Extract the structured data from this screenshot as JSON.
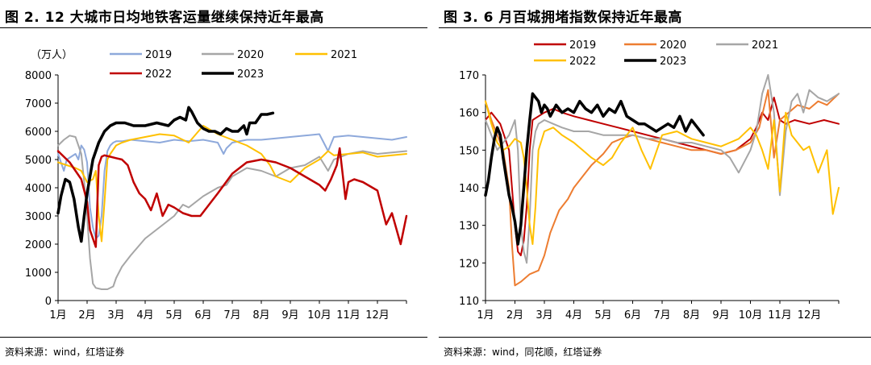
{
  "charts": [
    {
      "title": "图 2. 12 大城市日均地铁客运量继续保持近年最高",
      "source": "资料来源：wind，红塔证券"
    },
    {
      "title": "图 3. 6 月百城拥堵指数保持近年最高",
      "source": "资料来源：wind，同花顺，红塔证券"
    }
  ],
  "chart_data": [
    {
      "type": "line",
      "unit_label": "（万人）",
      "ylim": [
        0,
        8000
      ],
      "yticks": [
        0,
        1000,
        2000,
        3000,
        4000,
        5000,
        6000,
        7000,
        8000
      ],
      "xticks": [
        "1月",
        "2月",
        "3月",
        "4月",
        "5月",
        "6月",
        "7月",
        "8月",
        "9月",
        "10月",
        "11月",
        "12月"
      ],
      "xlim": [
        0,
        12
      ],
      "legend_position": "top",
      "grid": false,
      "series": [
        {
          "name": "2019",
          "color": "#8ea9db",
          "width": 2,
          "x": [
            0,
            0.1,
            0.2,
            0.3,
            0.45,
            0.6,
            0.7,
            0.8,
            0.9,
            1.0,
            1.1,
            1.2,
            1.3,
            1.4,
            1.5,
            1.6,
            1.7,
            1.8,
            1.9,
            2.0,
            2.2,
            2.5,
            3,
            3.5,
            4,
            4.5,
            5,
            5.5,
            5.7,
            5.8,
            6,
            6.5,
            7,
            7.5,
            8,
            8.5,
            9,
            9.3,
            9.5,
            10,
            10.5,
            11,
            11.5,
            12
          ],
          "y": [
            5200,
            4900,
            4600,
            5000,
            5100,
            5200,
            5000,
            5500,
            5350,
            4900,
            3300,
            2600,
            2200,
            2300,
            3000,
            4600,
            5300,
            5500,
            5600,
            5650,
            5650,
            5700,
            5650,
            5600,
            5700,
            5650,
            5700,
            5600,
            5200,
            5400,
            5600,
            5700,
            5700,
            5750,
            5800,
            5850,
            5900,
            5300,
            5800,
            5850,
            5800,
            5750,
            5700,
            5800
          ]
        },
        {
          "name": "2020",
          "color": "#a6a6a6",
          "width": 2,
          "x": [
            0,
            0.2,
            0.4,
            0.6,
            0.8,
            0.9,
            1.0,
            1.1,
            1.2,
            1.3,
            1.5,
            1.7,
            1.9,
            2.0,
            2.2,
            2.5,
            3,
            3.5,
            4,
            4.3,
            4.5,
            5,
            5.5,
            5.8,
            6,
            6.5,
            7,
            7.5,
            8,
            8.5,
            9,
            9.3,
            9.5,
            10,
            10.5,
            11,
            11.5,
            12
          ],
          "y": [
            5500,
            5700,
            5850,
            5800,
            5200,
            4200,
            3000,
            1500,
            600,
            450,
            400,
            400,
            500,
            800,
            1200,
            1600,
            2200,
            2600,
            3000,
            3400,
            3300,
            3700,
            4000,
            4100,
            4400,
            4700,
            4600,
            4400,
            4700,
            4800,
            5100,
            4600,
            5000,
            5200,
            5300,
            5200,
            5250,
            5300
          ]
        },
        {
          "name": "2021",
          "color": "#ffc000",
          "width": 2,
          "x": [
            0,
            0.3,
            0.6,
            0.8,
            1.0,
            1.2,
            1.3,
            1.4,
            1.5,
            1.6,
            1.7,
            1.8,
            2.0,
            2.2,
            2.5,
            3,
            3.5,
            4,
            4.3,
            4.5,
            5,
            5.5,
            6,
            6.5,
            7,
            7.3,
            7.5,
            8,
            8.5,
            9,
            9.3,
            9.5,
            10,
            10.5,
            11,
            11.5,
            12
          ],
          "y": [
            4900,
            4800,
            4700,
            4600,
            4200,
            4300,
            4600,
            3000,
            2100,
            3500,
            5000,
            5200,
            5500,
            5600,
            5700,
            5800,
            5900,
            5850,
            5700,
            5600,
            6200,
            5900,
            5700,
            5500,
            5200,
            4800,
            4400,
            4200,
            4700,
            5000,
            5300,
            5150,
            5200,
            5250,
            5100,
            5150,
            5200
          ]
        },
        {
          "name": "2022",
          "color": "#c00000",
          "width": 2.5,
          "x": [
            0,
            0.2,
            0.4,
            0.6,
            0.8,
            1.0,
            1.1,
            1.2,
            1.3,
            1.4,
            1.5,
            1.6,
            1.8,
            2.0,
            2.2,
            2.4,
            2.6,
            2.8,
            3.0,
            3.2,
            3.4,
            3.6,
            3.8,
            4.0,
            4.3,
            4.6,
            4.9,
            5.2,
            5.5,
            6,
            6.5,
            7,
            7.5,
            8,
            8.5,
            9,
            9.2,
            9.4,
            9.6,
            9.7,
            9.8,
            9.9,
            10.0,
            10.2,
            10.5,
            11,
            11.3,
            11.5,
            11.8,
            12
          ],
          "y": [
            5300,
            5100,
            4900,
            4600,
            4300,
            3500,
            2500,
            2200,
            1900,
            4800,
            5100,
            5150,
            5100,
            5050,
            5000,
            4800,
            4200,
            3800,
            3600,
            3200,
            3800,
            3000,
            3400,
            3300,
            3100,
            3000,
            3000,
            3400,
            3800,
            4500,
            4900,
            5000,
            4900,
            4700,
            4400,
            4100,
            3900,
            4300,
            4800,
            5400,
            4500,
            3600,
            4200,
            4300,
            4200,
            3900,
            2700,
            3100,
            2000,
            3000
          ]
        },
        {
          "name": "2023",
          "color": "#000000",
          "width": 3.5,
          "x": [
            0,
            0.1,
            0.25,
            0.4,
            0.55,
            0.7,
            0.8,
            0.9,
            1.0,
            1.1,
            1.2,
            1.4,
            1.6,
            1.8,
            2.0,
            2.3,
            2.6,
            3,
            3.4,
            3.8,
            4,
            4.2,
            4.4,
            4.5,
            4.6,
            4.8,
            5,
            5.2,
            5.4,
            5.6,
            5.8,
            6,
            6.2,
            6.4,
            6.5,
            6.6,
            6.8,
            7.0,
            7.2,
            7.4
          ],
          "y": [
            3100,
            3700,
            4300,
            4200,
            3600,
            2600,
            2100,
            3000,
            3800,
            4400,
            5000,
            5600,
            6000,
            6200,
            6300,
            6300,
            6200,
            6200,
            6300,
            6200,
            6400,
            6500,
            6400,
            6850,
            6700,
            6300,
            6100,
            6000,
            6000,
            5900,
            6100,
            6000,
            6000,
            6200,
            5900,
            6300,
            6300,
            6600,
            6600,
            6650
          ]
        }
      ]
    },
    {
      "type": "line",
      "ylim": [
        110,
        170
      ],
      "yticks": [
        110,
        120,
        130,
        140,
        150,
        160,
        170
      ],
      "xticks": [
        "1月",
        "2月",
        "3月",
        "4月",
        "5月",
        "6月",
        "7月",
        "8月",
        "9月",
        "10月",
        "11月",
        "12月"
      ],
      "xlim": [
        0,
        12
      ],
      "legend_position": "top",
      "grid": false,
      "series": [
        {
          "name": "2019",
          "color": "#c00000",
          "width": 2,
          "x": [
            0,
            0.2,
            0.5,
            0.8,
            1.0,
            1.1,
            1.2,
            1.3,
            1.4,
            1.5,
            1.6,
            1.8,
            2.0,
            2.3,
            2.6,
            3,
            3.5,
            4,
            4.5,
            5,
            5.5,
            6,
            6.5,
            7,
            7.5,
            8,
            8.5,
            9,
            9.2,
            9.4,
            9.6,
            9.8,
            10,
            10.2,
            10.5,
            11,
            11.5,
            12
          ],
          "y": [
            158,
            160,
            157,
            150,
            130,
            123,
            122,
            126,
            135,
            150,
            158,
            159,
            160,
            161,
            160,
            159,
            158,
            157,
            156,
            155,
            154,
            153,
            152,
            151,
            150,
            149,
            150,
            153,
            156,
            160,
            158,
            164,
            158,
            157,
            158,
            157,
            158,
            157
          ]
        },
        {
          "name": "2020",
          "color": "#ed7d31",
          "width": 2,
          "x": [
            0,
            0.2,
            0.4,
            0.6,
            0.8,
            0.9,
            1.0,
            1.2,
            1.5,
            1.8,
            2.0,
            2.2,
            2.5,
            2.8,
            3.0,
            3.3,
            3.6,
            4.0,
            4.3,
            4.6,
            5,
            5.5,
            6,
            6.5,
            7,
            7.5,
            8,
            8.5,
            9,
            9.3,
            9.6,
            9.8,
            10,
            10.3,
            10.6,
            11,
            11.3,
            11.6,
            12
          ],
          "y": [
            163,
            158,
            154,
            150,
            140,
            125,
            114,
            115,
            117,
            118,
            122,
            128,
            134,
            137,
            140,
            143,
            146,
            149,
            152,
            153,
            154,
            153,
            152,
            151,
            150,
            150,
            149,
            150,
            152,
            156,
            166,
            148,
            158,
            160,
            162,
            161,
            163,
            162,
            165
          ]
        },
        {
          "name": "2021",
          "color": "#a6a6a6",
          "width": 2,
          "x": [
            0,
            0.2,
            0.4,
            0.6,
            0.8,
            1.0,
            1.1,
            1.2,
            1.3,
            1.4,
            1.5,
            1.6,
            1.7,
            1.8,
            2.0,
            2.3,
            2.6,
            3,
            3.5,
            4,
            4.5,
            5,
            5.5,
            6,
            6.5,
            7,
            7.5,
            8,
            8.3,
            8.6,
            9,
            9.2,
            9.4,
            9.6,
            9.8,
            10,
            10.2,
            10.4,
            10.6,
            10.8,
            11,
            11.3,
            11.6,
            12
          ],
          "y": [
            158,
            154,
            150,
            152,
            154,
            158,
            150,
            130,
            123,
            120,
            132,
            150,
            155,
            157,
            158,
            157,
            156,
            155,
            155,
            154,
            154,
            154,
            153,
            153,
            152,
            152,
            151,
            150,
            148,
            144,
            150,
            155,
            165,
            170,
            160,
            138,
            155,
            163,
            165,
            160,
            166,
            164,
            163,
            165
          ]
        },
        {
          "name": "2022",
          "color": "#ffc000",
          "width": 2,
          "x": [
            0,
            0.2,
            0.4,
            0.6,
            0.8,
            1.0,
            1.2,
            1.3,
            1.4,
            1.5,
            1.6,
            1.7,
            1.8,
            2.0,
            2.3,
            2.6,
            3,
            3.3,
            3.6,
            4,
            4.3,
            4.6,
            5,
            5.3,
            5.6,
            6,
            6.5,
            7,
            7.5,
            8,
            8.3,
            8.6,
            9,
            9.2,
            9.4,
            9.6,
            9.8,
            10,
            10.2,
            10.4,
            10.6,
            10.8,
            11,
            11.3,
            11.6,
            11.8,
            12
          ],
          "y": [
            163,
            157,
            152,
            150,
            151,
            153,
            152,
            148,
            140,
            130,
            125,
            135,
            150,
            155,
            156,
            154,
            152,
            150,
            148,
            146,
            148,
            152,
            156,
            150,
            145,
            154,
            155,
            153,
            152,
            151,
            152,
            153,
            156,
            154,
            150,
            145,
            158,
            139,
            160,
            154,
            152,
            150,
            151,
            144,
            150,
            133,
            140
          ]
        },
        {
          "name": "2023",
          "color": "#000000",
          "width": 3.5,
          "x": [
            0,
            0.1,
            0.2,
            0.3,
            0.4,
            0.5,
            0.6,
            0.7,
            0.8,
            0.9,
            1.0,
            1.1,
            1.2,
            1.3,
            1.4,
            1.5,
            1.6,
            1.7,
            1.8,
            1.9,
            2.0,
            2.1,
            2.2,
            2.4,
            2.6,
            2.8,
            3.0,
            3.2,
            3.4,
            3.6,
            3.8,
            4.0,
            4.2,
            4.4,
            4.6,
            4.8,
            5.0,
            5.2,
            5.4,
            5.6,
            5.8,
            6.0,
            6.2,
            6.4,
            6.6,
            6.8,
            7.0,
            7.2,
            7.4
          ],
          "y": [
            138,
            142,
            148,
            153,
            156,
            154,
            148,
            143,
            138,
            135,
            131,
            125,
            130,
            140,
            150,
            158,
            165,
            164,
            163,
            160,
            162,
            161,
            159,
            162,
            160,
            161,
            160,
            163,
            161,
            160,
            162,
            159,
            161,
            160,
            163,
            159,
            158,
            157,
            157,
            156,
            155,
            156,
            157,
            156,
            159,
            155,
            158,
            156,
            154
          ]
        }
      ]
    }
  ]
}
